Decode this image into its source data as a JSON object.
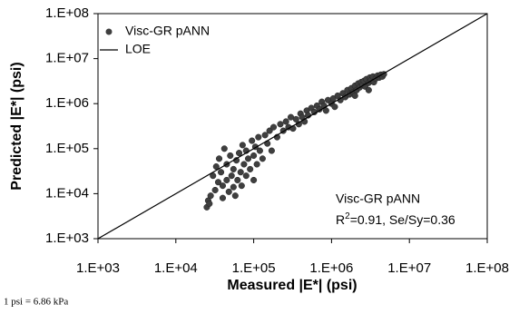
{
  "chart_data": {
    "type": "scatter",
    "xlabel": "Measured |E*| (psi)",
    "ylabel": "Predicted |E*| (psi)",
    "xscale": "log",
    "yscale": "log",
    "xlim": [
      1000,
      100000000
    ],
    "ylim": [
      1000,
      100000000
    ],
    "xticks": [
      {
        "value": 1000,
        "label": "1.E+03"
      },
      {
        "value": 10000,
        "label": "1.E+04"
      },
      {
        "value": 100000,
        "label": "1.E+05"
      },
      {
        "value": 1000000,
        "label": "1.E+06"
      },
      {
        "value": 10000000,
        "label": "1.E+07"
      },
      {
        "value": 100000000,
        "label": "1.E+08"
      }
    ],
    "yticks": [
      {
        "value": 1000,
        "label": "1.E+03"
      },
      {
        "value": 10000,
        "label": "1.E+04"
      },
      {
        "value": 100000,
        "label": "1.E+05"
      },
      {
        "value": 1000000,
        "label": "1.E+06"
      },
      {
        "value": 10000000,
        "label": "1.E+07"
      },
      {
        "value": 100000000,
        "label": "1.E+08"
      }
    ],
    "legend": "upper left",
    "series": [
      {
        "name": "Visc-GR pANN",
        "color": "#3f3f3f",
        "x": [
          25000,
          26000,
          27000,
          28000,
          30000,
          32000,
          33000,
          35000,
          36000,
          38000,
          40000,
          40000,
          42000,
          45000,
          45000,
          48000,
          50000,
          52000,
          55000,
          55000,
          58000,
          60000,
          62000,
          65000,
          68000,
          70000,
          72000,
          75000,
          80000,
          80000,
          85000,
          90000,
          95000,
          100000,
          100000,
          105000,
          110000,
          115000,
          120000,
          130000,
          140000,
          150000,
          160000,
          170000,
          180000,
          200000,
          220000,
          240000,
          260000,
          280000,
          300000,
          320000,
          350000,
          380000,
          400000,
          420000,
          450000,
          480000,
          500000,
          550000,
          600000,
          650000,
          700000,
          750000,
          800000,
          850000,
          900000,
          1000000,
          1050000,
          1100000,
          1200000,
          1300000,
          1400000,
          1500000,
          1600000,
          1700000,
          1800000,
          1900000,
          2000000,
          2100000,
          2200000,
          2300000,
          2400000,
          2500000,
          2600000,
          2700000,
          2800000,
          3000000,
          3100000,
          3200000,
          3400000,
          3500000,
          3700000,
          3900000,
          4100000,
          4300000,
          4500000,
          4700000,
          3000000,
          2000000
        ],
        "y": [
          5000,
          7000,
          6000,
          9000,
          25000,
          12000,
          40000,
          18000,
          60000,
          30000,
          8000,
          15000,
          100000,
          20000,
          45000,
          11000,
          70000,
          25000,
          14000,
          35000,
          9000,
          55000,
          20000,
          80000,
          30000,
          15000,
          120000,
          45000,
          25000,
          90000,
          60000,
          35000,
          150000,
          70000,
          20000,
          110000,
          45000,
          180000,
          90000,
          60000,
          200000,
          130000,
          250000,
          90000,
          300000,
          180000,
          350000,
          250000,
          400000,
          300000,
          500000,
          280000,
          450000,
          350000,
          600000,
          500000,
          400000,
          700000,
          550000,
          800000,
          650000,
          900000,
          750000,
          1100000,
          900000,
          700000,
          1200000,
          1000000,
          1300000,
          850000,
          1500000,
          1200000,
          1700000,
          1400000,
          2000000,
          1600000,
          2200000,
          1800000,
          2500000,
          2000000,
          2800000,
          2300000,
          3000000,
          2600000,
          3200000,
          2400000,
          3500000,
          2900000,
          3800000,
          3300000,
          4000000,
          3000000,
          3600000,
          4200000,
          3800000,
          4400000,
          4000000,
          4500000,
          2000000,
          1500000
        ]
      },
      {
        "name": "LOE",
        "type": "line",
        "color": "#000000",
        "x": [
          1000,
          100000000
        ],
        "y": [
          1000,
          100000000
        ]
      }
    ],
    "annotation": {
      "model": "Visc-GR pANN",
      "r_symbol": "R",
      "r_power": "2",
      "stats": "=0.91, Se/Sy=0.36"
    },
    "footnote": "1 psi = 6.86 kPa"
  }
}
